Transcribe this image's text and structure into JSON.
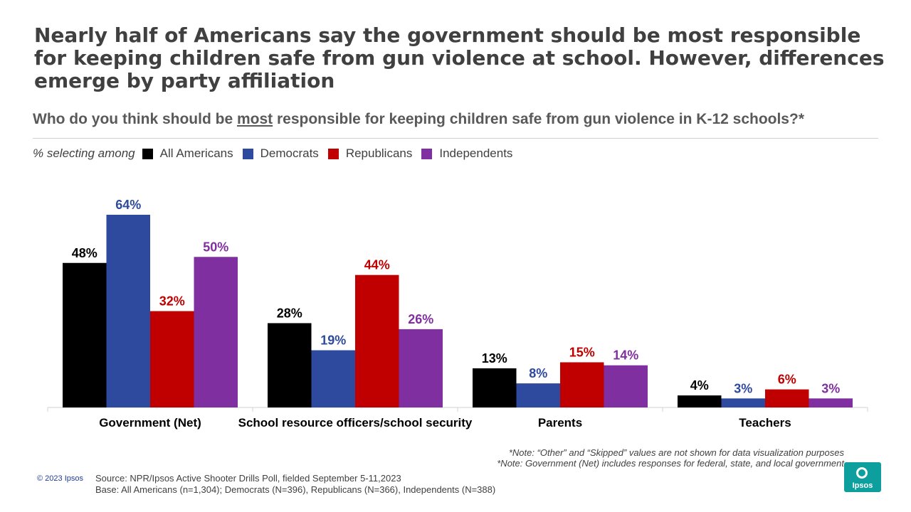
{
  "title": "Nearly half of Americans say the government should be most responsible for keeping children safe from gun violence at school. However, differences emerge by party affiliation",
  "subtitle": {
    "before": "Who do you think should be ",
    "emphasis": "most",
    "after": " responsible for keeping children safe from gun violence in K-12 schools?*"
  },
  "legend_lead": "% selecting among",
  "chart_data": {
    "type": "bar",
    "categories": [
      "Government (Net)",
      "School resource officers/school security",
      "Parents",
      "Teachers"
    ],
    "series": [
      {
        "name": "All Americans",
        "color": "#000000",
        "values": [
          48,
          28,
          13,
          4
        ]
      },
      {
        "name": "Democrats",
        "color": "#2e4a9e",
        "values": [
          64,
          19,
          8,
          3
        ]
      },
      {
        "name": "Republicans",
        "color": "#c00000",
        "values": [
          32,
          44,
          15,
          6
        ]
      },
      {
        "name": "Independents",
        "color": "#7f2f9f",
        "values": [
          50,
          26,
          14,
          3
        ]
      }
    ],
    "value_suffix": "%",
    "ylim": [
      0,
      64
    ],
    "grid": false
  },
  "notes": [
    "*Note: “Other” and “Skipped” values are not shown for data visualization purposes",
    "*Note: Government (Net) includes responses for federal, state, and local government"
  ],
  "copyright": "© 2023 Ipsos",
  "source": "Source: NPR/Ipsos Active Shooter Drills Poll, fielded September 5-11,2023",
  "base": "Base: All Americans (n=1,304); Democrats (N=396), Republicans (N=366), Independents (N=388)",
  "logo_text": "Ipsos",
  "logo_color": "#0d9e9e"
}
